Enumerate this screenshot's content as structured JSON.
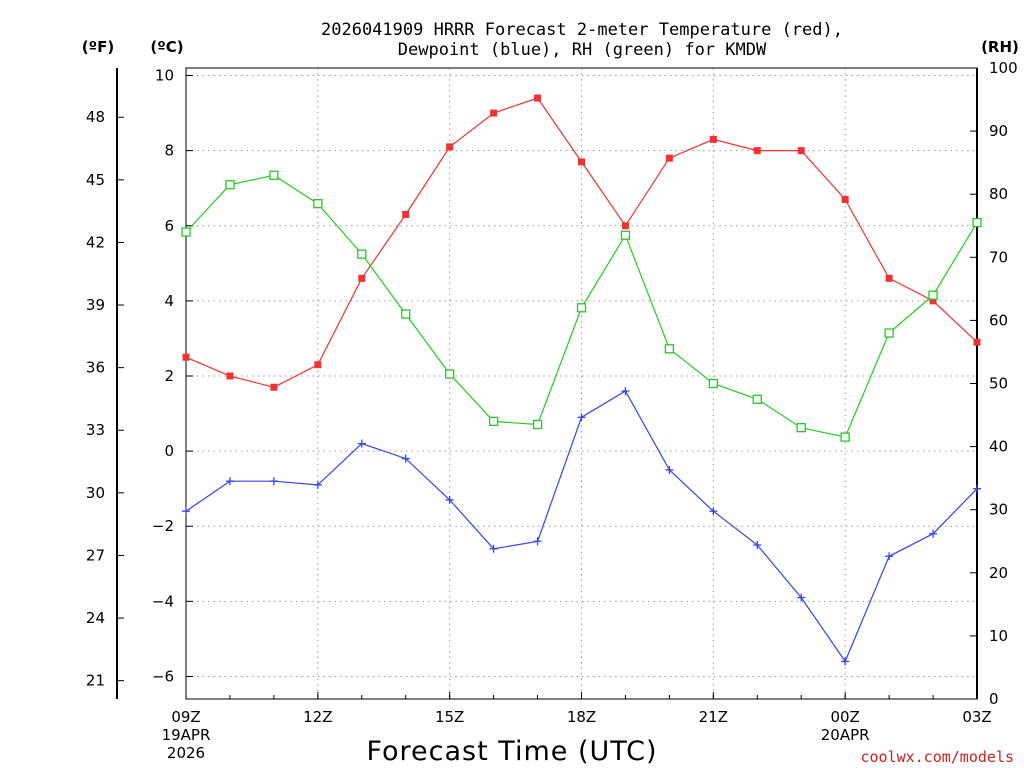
{
  "chart_data": {
    "type": "line",
    "title_line1": "2026041909 HRRR Forecast 2-meter Temperature (red),",
    "title_line2": "Dewpoint (blue), RH (green) for KMDW",
    "xlabel": "Forecast Time (UTC)",
    "credit": "coolwx.com/models",
    "units": {
      "fahrenheit": "(ºF)",
      "celsius": "(ºC)",
      "rh": "(RH)"
    },
    "x_hours": [
      0,
      1,
      2,
      3,
      4,
      5,
      6,
      7,
      8,
      9,
      10,
      11,
      12,
      13,
      14,
      15,
      16,
      17,
      18
    ],
    "x_ticks": [
      {
        "hour": 0,
        "label": "09Z",
        "sub1": "19APR",
        "sub2": "2026"
      },
      {
        "hour": 3,
        "label": "12Z",
        "sub1": "",
        "sub2": ""
      },
      {
        "hour": 6,
        "label": "15Z",
        "sub1": "",
        "sub2": ""
      },
      {
        "hour": 9,
        "label": "18Z",
        "sub1": "",
        "sub2": ""
      },
      {
        "hour": 12,
        "label": "21Z",
        "sub1": "",
        "sub2": ""
      },
      {
        "hour": 15,
        "label": "00Z",
        "sub1": "20APR",
        "sub2": ""
      },
      {
        "hour": 18,
        "label": "03Z",
        "sub1": "",
        "sub2": ""
      }
    ],
    "c_range": [
      -6.6,
      10.2
    ],
    "c_ticks": [
      -6,
      -4,
      -2,
      0,
      2,
      4,
      6,
      8,
      10
    ],
    "f_ticks": [
      21,
      24,
      27,
      30,
      33,
      36,
      39,
      42,
      45,
      48
    ],
    "rh_range": [
      0,
      100
    ],
    "rh_ticks": [
      0,
      10,
      20,
      30,
      40,
      50,
      60,
      70,
      80,
      90,
      100
    ],
    "series": [
      {
        "name": "Temperature",
        "unit": "C",
        "color": "#ee3333",
        "marker": "filled-square",
        "values": [
          2.5,
          2.0,
          1.7,
          2.3,
          4.6,
          6.3,
          8.1,
          9.0,
          9.4,
          7.7,
          6.0,
          7.8,
          8.3,
          8.0,
          8.0,
          6.7,
          4.6,
          4.0,
          2.9
        ]
      },
      {
        "name": "Dewpoint",
        "unit": "C",
        "color": "#3344ee",
        "marker": "plus",
        "values": [
          -1.6,
          -0.8,
          -0.8,
          -0.9,
          0.2,
          -0.2,
          -1.3,
          -2.6,
          -2.4,
          0.9,
          1.6,
          -0.5,
          -1.6,
          -2.5,
          -3.9,
          -5.6,
          -2.8,
          -2.2,
          -1.0
        ]
      },
      {
        "name": "Relative Humidity",
        "unit": "RH",
        "color": "#22cc22",
        "marker": "open-square",
        "values": [
          74,
          81.5,
          83,
          78.5,
          70.5,
          61,
          51.5,
          44,
          43.5,
          62,
          73.5,
          55.5,
          50,
          47.5,
          43,
          41.5,
          58,
          64,
          75.5
        ]
      }
    ]
  }
}
